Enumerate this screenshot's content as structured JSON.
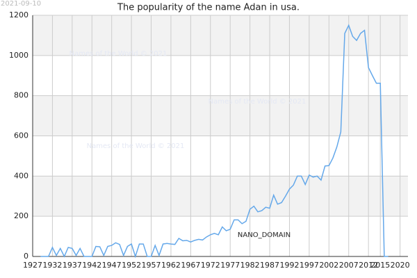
{
  "chart_data": {
    "type": "line",
    "title": "The popularity of the name Adan in usa.",
    "date_stamp": "2021-09-10",
    "watermarks": [
      "Names of the World © 2021",
      "Names of the World © 2021",
      "Names of the World © 2021"
    ],
    "domain_label": "NANO_DOMAIN",
    "x": [
      1929,
      1930,
      1931,
      1932,
      1933,
      1934,
      1935,
      1936,
      1937,
      1938,
      1939,
      1940,
      1941,
      1942,
      1943,
      1944,
      1945,
      1946,
      1947,
      1948,
      1949,
      1950,
      1951,
      1952,
      1953,
      1954,
      1955,
      1956,
      1957,
      1958,
      1959,
      1960,
      1961,
      1962,
      1963,
      1964,
      1965,
      1966,
      1967,
      1968,
      1969,
      1970,
      1971,
      1972,
      1973,
      1974,
      1975,
      1976,
      1977,
      1978,
      1979,
      1980,
      1981,
      1982,
      1983,
      1984,
      1985,
      1986,
      1987,
      1988,
      1989,
      1990,
      1991,
      1992,
      1993,
      1994,
      1995,
      1996,
      1997,
      1998,
      1999,
      2000,
      2001,
      2002,
      2003,
      2004,
      2005,
      2006,
      2007,
      2008,
      2009,
      2010,
      2011,
      2012,
      2013,
      2014,
      2015,
      2016,
      2017
    ],
    "series": [
      {
        "name": "Adan",
        "color": "#64a8ea",
        "values": [
          0,
          0,
          0,
          45,
          5,
          40,
          0,
          45,
          40,
          5,
          40,
          0,
          0,
          0,
          50,
          48,
          5,
          50,
          55,
          68,
          60,
          5,
          50,
          62,
          0,
          62,
          62,
          0,
          0,
          55,
          5,
          62,
          65,
          62,
          60,
          90,
          78,
          80,
          72,
          80,
          85,
          82,
          97,
          108,
          115,
          108,
          147,
          128,
          135,
          182,
          182,
          163,
          175,
          235,
          250,
          222,
          228,
          245,
          240,
          305,
          260,
          268,
          300,
          335,
          355,
          400,
          400,
          358,
          405,
          395,
          400,
          380,
          450,
          452,
          490,
          545,
          620,
          1110,
          1150,
          1095,
          1075,
          1110,
          1125,
          940,
          900,
          862,
          862,
          0,
          0
        ]
      }
    ],
    "xlim": [
      1927,
      2022
    ],
    "xticks": [
      1927,
      1932,
      1937,
      1942,
      1947,
      1952,
      1957,
      1962,
      1967,
      1972,
      1977,
      1982,
      1987,
      1992,
      1997,
      2002,
      2007,
      2012,
      2015,
      2020
    ],
    "ylim": [
      0,
      1200
    ],
    "yticks": [
      0,
      200,
      400,
      600,
      800,
      1000,
      1200
    ],
    "grid": true
  }
}
